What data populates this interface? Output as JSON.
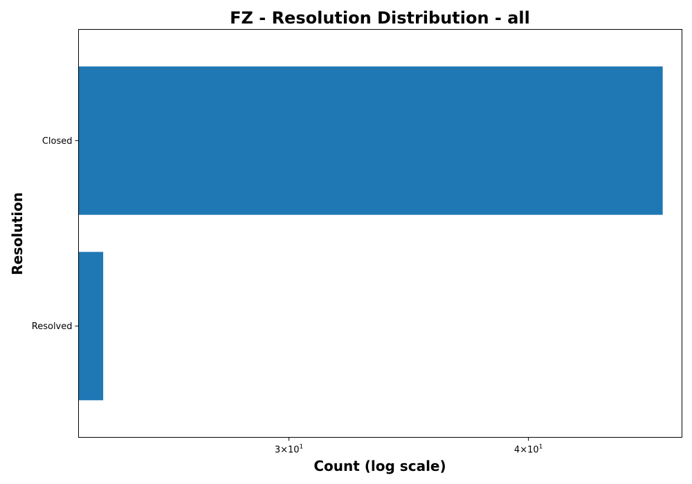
{
  "chart_data": {
    "type": "bar",
    "orientation": "horizontal",
    "title": "FZ - Resolution Distribution - all",
    "xlabel": "Count (log scale)",
    "ylabel": "Resolution",
    "x_scale": "log",
    "xlim": [
      23.3,
      48.1
    ],
    "categories": [
      "Closed",
      "Resolved"
    ],
    "values": [
      47,
      24
    ],
    "x_ticks": [
      {
        "value": 30,
        "label_base": "3×10",
        "label_exp": "1"
      },
      {
        "value": 40,
        "label_base": "4×10",
        "label_exp": "1"
      }
    ],
    "bar_color": "#1f77b4",
    "grid": false,
    "legend": "none"
  }
}
